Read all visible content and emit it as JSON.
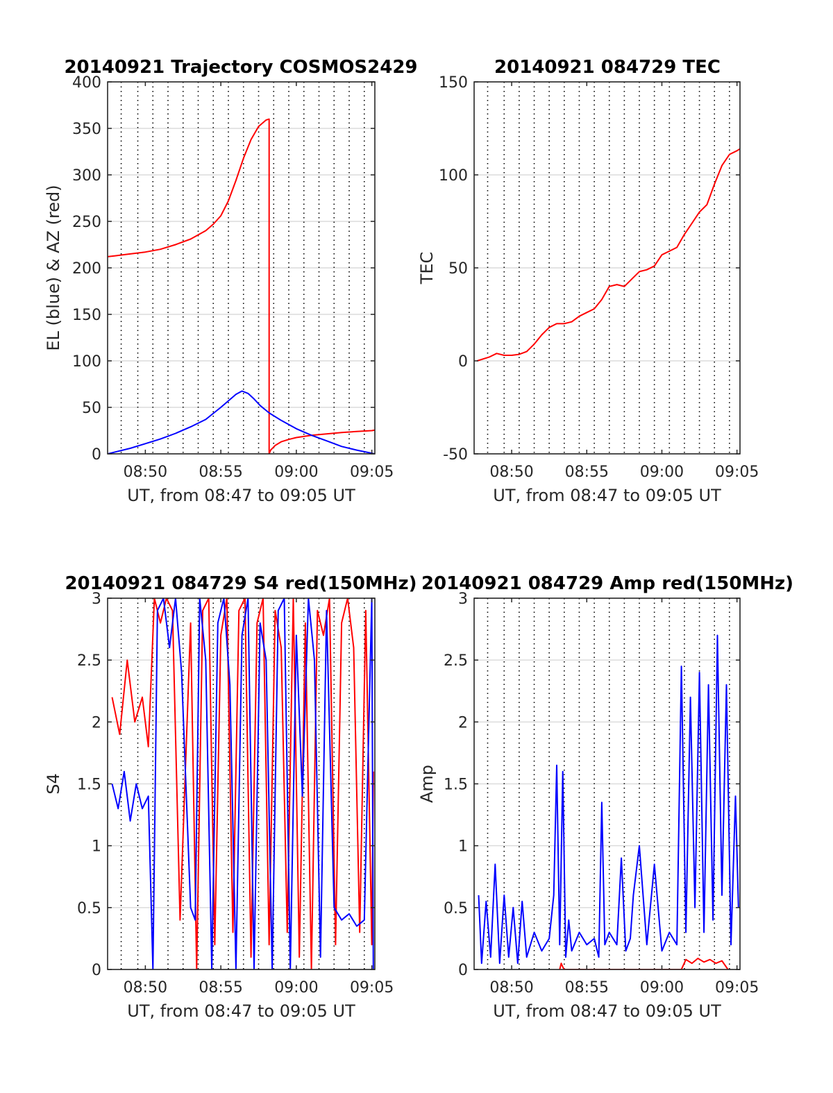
{
  "figure": {
    "background": "#ffffff",
    "colors": {
      "red": "#ff0000",
      "blue": "#0000ff",
      "grid": "#dcdcdc",
      "axis": "#262626"
    }
  },
  "chart_data": [
    {
      "id": "trajectory",
      "type": "line",
      "title": "20140921 Trajectory COSMOS2429",
      "xlabel": "UT, from 08:47 to 09:05 UT",
      "ylabel": "EL (blue) & AZ (red)",
      "xlim": [
        527.5,
        545.2
      ],
      "ylim": [
        0,
        400
      ],
      "yticks": [
        "0",
        "50",
        "100",
        "150",
        "200",
        "250",
        "300",
        "350",
        "400"
      ],
      "xticks": [
        {
          "t": 530,
          "label": "08:50"
        },
        {
          "t": 535,
          "label": "08:55"
        },
        {
          "t": 540,
          "label": "09:00"
        },
        {
          "t": 545,
          "label": "09:05"
        }
      ],
      "vlines": [
        528.4,
        529.5,
        530.5,
        531.5,
        532.5,
        533.5,
        534.5,
        535.5,
        536.5,
        537.5,
        538.5,
        539.5,
        540.5,
        541.5,
        542.5,
        543.5,
        544.5
      ],
      "grid": true,
      "series": [
        {
          "color": "#ff0000",
          "x": [
            527.5,
            528,
            529,
            530,
            531,
            532,
            533,
            534,
            534.5,
            535,
            535.5,
            536,
            536.5,
            537,
            537.5,
            538,
            538.2,
            538.2,
            538.3,
            538.6,
            539,
            539.5,
            540,
            541,
            542,
            543,
            544,
            545,
            545.2
          ],
          "y": [
            212,
            213,
            215,
            217,
            220,
            225,
            231,
            240,
            247,
            256,
            272,
            294,
            318,
            338,
            352,
            359,
            360,
            0,
            4,
            9,
            13,
            15.5,
            17.5,
            20,
            21.5,
            23,
            24,
            25,
            25.5
          ]
        },
        {
          "color": "#0000ff",
          "x": [
            527.5,
            528,
            529,
            530,
            531,
            532,
            533,
            534,
            535,
            535.5,
            536,
            536.4,
            536.8,
            537.2,
            537.6,
            538.2,
            539,
            540,
            541,
            542,
            543,
            544,
            545.2
          ],
          "y": [
            0,
            2,
            6,
            11,
            16,
            22,
            29,
            37,
            50,
            57,
            64,
            67.5,
            65,
            59,
            52,
            44,
            36,
            27,
            20,
            14,
            8,
            4,
            0
          ]
        }
      ]
    },
    {
      "id": "tec",
      "type": "line",
      "title": "20140921 084729 TEC",
      "xlabel": "UT, from 08:47 to 09:05 UT",
      "ylabel": "TEC",
      "xlim": [
        527.5,
        545.2
      ],
      "ylim": [
        -50,
        150
      ],
      "yticks": [
        "-50",
        "0",
        "50",
        "100",
        "150"
      ],
      "xticks": [
        {
          "t": 530,
          "label": "08:50"
        },
        {
          "t": 535,
          "label": "08:55"
        },
        {
          "t": 540,
          "label": "09:00"
        },
        {
          "t": 545,
          "label": "09:05"
        }
      ],
      "vlines": [
        528.4,
        529.5,
        530.5,
        531.5,
        532.5,
        533.5,
        534.5,
        535.5,
        536.5,
        537.5,
        538.5,
        539.5,
        540.5,
        541.5,
        542.5,
        543.5,
        544.5
      ],
      "grid": true,
      "series": [
        {
          "color": "#ff0000",
          "x": [
            527.7,
            528.5,
            529,
            529.5,
            530,
            530.5,
            531,
            531.5,
            532,
            532.5,
            533,
            533.5,
            534,
            534.5,
            535,
            535.5,
            536,
            536.5,
            537,
            537.5,
            538,
            538.5,
            539,
            539.5,
            540,
            540.5,
            541,
            541.5,
            542,
            542.5,
            543,
            543.5,
            544,
            544.5,
            545,
            545.2
          ],
          "y": [
            0,
            2,
            4,
            3,
            3,
            3.5,
            5,
            9,
            14,
            18,
            20,
            20,
            21,
            24,
            26,
            28,
            33,
            40,
            41,
            40,
            44,
            48,
            49,
            51,
            57,
            59,
            61,
            68,
            74,
            80,
            84,
            95,
            105,
            111,
            113,
            114
          ]
        }
      ]
    },
    {
      "id": "s4",
      "type": "line",
      "title": "20140921 084729 S4 red(150MHz)",
      "xlabel": "UT, from 08:47 to 09:05 UT",
      "ylabel": "S4",
      "xlim": [
        527.5,
        545.2
      ],
      "ylim": [
        0,
        3
      ],
      "yticks": [
        "0",
        "0.5",
        "1",
        "1.5",
        "2",
        "2.5",
        "3"
      ],
      "xticks": [
        {
          "t": 530,
          "label": "08:50"
        },
        {
          "t": 535,
          "label": "08:55"
        },
        {
          "t": 540,
          "label": "09:00"
        },
        {
          "t": 545,
          "label": "09:05"
        }
      ],
      "vlines": [
        528.4,
        529.5,
        530.5,
        531.5,
        532.5,
        533.5,
        534.5,
        535.5,
        536.5,
        537.5,
        538.5,
        539.5,
        540.5,
        541.5,
        542.5,
        543.5,
        544.5
      ],
      "grid": true,
      "series": [
        {
          "color": "#ff0000",
          "x": [
            527.8,
            528.3,
            528.8,
            529.3,
            529.8,
            530.2,
            530.6,
            531,
            531.4,
            531.8,
            532.3,
            533,
            533.4,
            533.8,
            534.2,
            534.6,
            535,
            535.4,
            535.8,
            536.2,
            536.6,
            537,
            537.4,
            537.8,
            538.2,
            538.6,
            539,
            539.4,
            539.8,
            540.2,
            540.6,
            541,
            541.4,
            541.8,
            542.2,
            542.6,
            543,
            543.4,
            543.8,
            544.2,
            544.6,
            545,
            545.1
          ],
          "y": [
            2.2,
            1.9,
            2.5,
            2.0,
            2.2,
            1.8,
            3,
            2.8,
            3,
            2.9,
            0.4,
            2.8,
            0,
            2.9,
            3,
            0.2,
            2.7,
            3,
            0.3,
            2.9,
            3,
            0.1,
            2.8,
            3,
            0.2,
            2.9,
            2.6,
            0.3,
            3,
            0.1,
            2.8,
            0,
            2.9,
            2.7,
            3,
            0.2,
            2.8,
            3,
            2.6,
            0.3,
            2.9,
            0.2,
            1.6
          ]
        },
        {
          "color": "#0000ff",
          "x": [
            527.8,
            528.2,
            528.6,
            529,
            529.4,
            529.8,
            530.2,
            530.5,
            530.8,
            531.2,
            531.6,
            532,
            532.4,
            533,
            533.3,
            533.6,
            534,
            534.4,
            534.8,
            535.2,
            535.6,
            536,
            536.4,
            536.8,
            537.2,
            537.6,
            538,
            538.4,
            538.8,
            539.2,
            539.6,
            540,
            540.4,
            540.8,
            541.2,
            541.6,
            542,
            542.5,
            543,
            543.5,
            544,
            544.5,
            545,
            545.1
          ],
          "y": [
            1.5,
            1.3,
            1.6,
            1.2,
            1.5,
            1.3,
            1.4,
            0,
            2.9,
            3,
            2.6,
            3,
            2.4,
            0.5,
            0.4,
            3,
            2.5,
            0,
            2.8,
            3,
            2.3,
            0,
            2.7,
            3,
            0,
            2.8,
            2.5,
            0,
            2.9,
            3,
            0,
            2.7,
            1.4,
            3,
            2.5,
            0.1,
            2.9,
            0.5,
            0.4,
            0.45,
            0.35,
            0.4,
            3,
            0
          ]
        }
      ]
    },
    {
      "id": "amp",
      "type": "line",
      "title": "20140921 084729 Amp red(150MHz)",
      "xlabel": "UT, from 08:47 to 09:05 UT",
      "ylabel": "Amp",
      "xlim": [
        527.5,
        545.2
      ],
      "ylim": [
        0,
        3
      ],
      "yticks": [
        "0",
        "0.5",
        "1",
        "1.5",
        "2",
        "2.5",
        "3"
      ],
      "xticks": [
        {
          "t": 530,
          "label": "08:50"
        },
        {
          "t": 535,
          "label": "08:55"
        },
        {
          "t": 540,
          "label": "09:00"
        },
        {
          "t": 545,
          "label": "09:05"
        }
      ],
      "vlines": [
        528.4,
        529.5,
        530.5,
        531.5,
        532.5,
        533.5,
        534.5,
        535.5,
        536.5,
        537.5,
        538.5,
        539.5,
        540.5,
        541.5,
        542.5,
        543.5,
        544.5
      ],
      "grid": true,
      "series": [
        {
          "color": "#ff0000",
          "x": [
            533.2,
            533.3,
            533.4,
            533.5,
            541.3,
            541.6,
            542,
            542.4,
            542.8,
            543.2,
            543.6,
            544,
            544.4
          ],
          "y": [
            0,
            0.05,
            0.02,
            0,
            0,
            0.08,
            0.05,
            0.09,
            0.06,
            0.08,
            0.05,
            0.07,
            0
          ]
        },
        {
          "color": "#0000ff",
          "x": [
            527.8,
            528,
            528.3,
            528.6,
            528.9,
            529.2,
            529.5,
            529.8,
            530.1,
            530.4,
            530.7,
            531,
            531.5,
            532,
            532.5,
            532.8,
            533,
            533.2,
            533.4,
            533.6,
            533.8,
            534,
            534.5,
            535,
            535.5,
            535.8,
            536,
            536.2,
            536.5,
            537,
            537.3,
            537.6,
            537.9,
            538.1,
            538.5,
            539,
            539.5,
            540,
            540.5,
            541,
            541.3,
            541.6,
            541.9,
            542.2,
            542.5,
            542.8,
            543.1,
            543.4,
            543.7,
            544,
            544.3,
            544.6,
            544.9,
            545.1
          ],
          "y": [
            0.6,
            0.05,
            0.55,
            0.1,
            0.85,
            0.05,
            0.6,
            0.1,
            0.5,
            0.05,
            0.55,
            0.1,
            0.3,
            0.15,
            0.25,
            0.6,
            1.65,
            0.2,
            1.6,
            0.1,
            0.4,
            0.15,
            0.3,
            0.2,
            0.25,
            0.1,
            1.35,
            0.2,
            0.3,
            0.2,
            0.9,
            0.15,
            0.25,
            0.6,
            1.0,
            0.2,
            0.85,
            0.15,
            0.3,
            0.2,
            2.45,
            0.3,
            2.2,
            0.5,
            2.4,
            0.3,
            2.3,
            0.4,
            2.7,
            0.6,
            2.3,
            0.2,
            1.4,
            0.5
          ]
        }
      ]
    }
  ]
}
